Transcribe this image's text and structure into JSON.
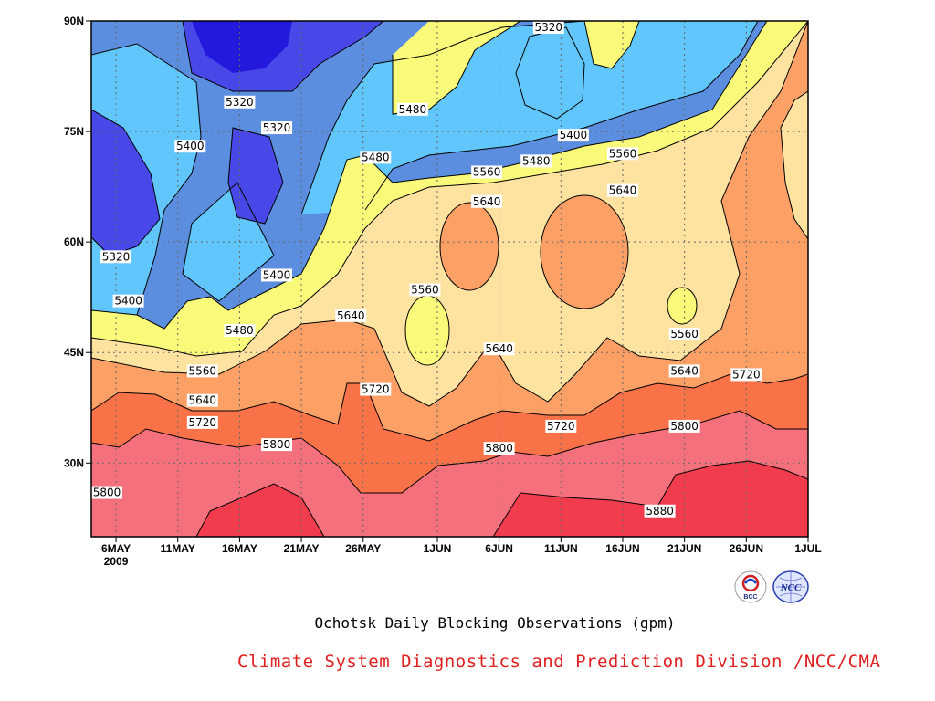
{
  "chart_data": {
    "type": "heatmap",
    "subtype": "filled-contour",
    "title": "Ochotsk Daily Blocking Observations (gpm)",
    "credit": "Climate System Diagnostics and Prediction Division /NCC/CMA",
    "x": {
      "ticks": [
        "6MAY",
        "11MAY",
        "16MAY",
        "21MAY",
        "26MAY",
        "1JUN",
        "6JUN",
        "11JUN",
        "16JUN",
        "21JUN",
        "26JUN",
        "1JUL"
      ],
      "year_label": "2009",
      "range": [
        "2009-05-04",
        "2009-07-01"
      ]
    },
    "y": {
      "ticks": [
        "30N",
        "45N",
        "60N",
        "75N",
        "90N"
      ],
      "range": [
        20,
        90
      ]
    },
    "grid": "dotted",
    "levels": [
      5320,
      5400,
      5480,
      5560,
      5640,
      5720,
      5800,
      5880
    ],
    "fill_colors": [
      "#2418dc",
      "#4848e8",
      "#5c8ee0",
      "#60c6fc",
      "#fafa7a",
      "#fee2a0",
      "#fca066",
      "#fa7248",
      "#f4707c",
      "#f03c4c"
    ],
    "contour_labels": [
      {
        "text": "5320",
        "date": "2009-06-10",
        "lat": 90
      },
      {
        "text": "5320",
        "date": "2009-05-16",
        "lat": 79
      },
      {
        "text": "5320",
        "date": "2009-05-19",
        "lat": 75.5
      },
      {
        "text": "5320",
        "date": "2009-05-06",
        "lat": 58
      },
      {
        "text": "5400",
        "date": "2009-05-12",
        "lat": 73
      },
      {
        "text": "5400",
        "date": "2009-05-19",
        "lat": 55.5
      },
      {
        "text": "5400",
        "date": "2009-05-07",
        "lat": 52
      },
      {
        "text": "5400",
        "date": "2009-06-12",
        "lat": 74.5
      },
      {
        "text": "5480",
        "date": "2009-05-30",
        "lat": 78
      },
      {
        "text": "5480",
        "date": "2009-05-27",
        "lat": 71.5
      },
      {
        "text": "5480",
        "date": "2009-06-09",
        "lat": 71
      },
      {
        "text": "5480",
        "date": "2009-05-16",
        "lat": 48
      },
      {
        "text": "5560",
        "date": "2009-06-05",
        "lat": 69.5
      },
      {
        "text": "5560",
        "date": "2009-06-16",
        "lat": 72
      },
      {
        "text": "5560",
        "date": "2009-05-31",
        "lat": 53.5
      },
      {
        "text": "5560",
        "date": "2009-05-13",
        "lat": 42.5
      },
      {
        "text": "5560",
        "date": "2009-06-21",
        "lat": 47.5
      },
      {
        "text": "5640",
        "date": "2009-06-05",
        "lat": 65.5
      },
      {
        "text": "5640",
        "date": "2009-06-16",
        "lat": 67
      },
      {
        "text": "5640",
        "date": "2009-05-25",
        "lat": 50
      },
      {
        "text": "5640",
        "date": "2009-06-06",
        "lat": 45.5
      },
      {
        "text": "5640",
        "date": "2009-05-13",
        "lat": 38.5
      },
      {
        "text": "5640",
        "date": "2009-06-21",
        "lat": 42.5
      },
      {
        "text": "5720",
        "date": "2009-05-27",
        "lat": 40
      },
      {
        "text": "5720",
        "date": "2009-05-13",
        "lat": 35.5
      },
      {
        "text": "5720",
        "date": "2009-06-11",
        "lat": 35
      },
      {
        "text": "5720",
        "date": "2009-06-26",
        "lat": 42
      },
      {
        "text": "5800",
        "date": "2009-05-19",
        "lat": 32.5
      },
      {
        "text": "5800",
        "date": "2009-06-06",
        "lat": 32
      },
      {
        "text": "5800",
        "date": "2009-06-21",
        "lat": 35
      },
      {
        "text": "5800",
        "date": "2009-05-04",
        "lat": 26
      },
      {
        "text": "5880",
        "date": "2009-06-19",
        "lat": 23.5
      }
    ]
  },
  "logos": [
    {
      "name": "bcc-logo",
      "text": "BCC"
    },
    {
      "name": "ncc-logo",
      "text": "NCC"
    }
  ]
}
